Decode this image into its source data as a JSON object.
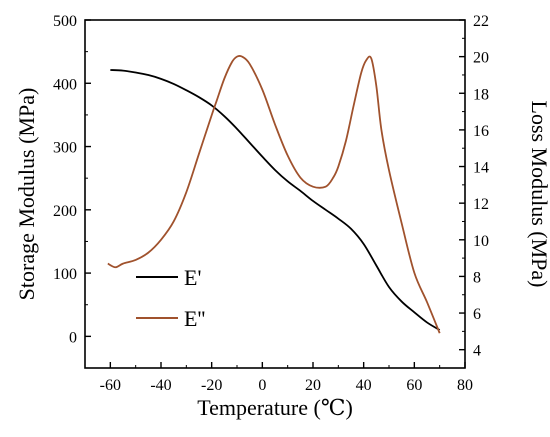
{
  "chart_data": {
    "type": "line",
    "xlabel": "Temperature (℃)",
    "ylabel": "Storage Modulus (MPa)",
    "y2label": "Loss Modulus (MPa)",
    "xlim": [
      -70,
      80
    ],
    "ylim": [
      -50,
      500
    ],
    "y2lim": [
      3,
      22
    ],
    "x_ticks": [
      "-60",
      "-40",
      "-20",
      "0",
      "20",
      "40",
      "60",
      "80"
    ],
    "y_ticks": [
      "0",
      "100",
      "200",
      "300",
      "400",
      "500"
    ],
    "y2_ticks": [
      "4",
      "6",
      "8",
      "10",
      "12",
      "14",
      "16",
      "18",
      "20",
      "22"
    ],
    "grid": false,
    "legend_position": "lower-left",
    "series": [
      {
        "name": "E'",
        "axis": "left",
        "color": "#000000",
        "x": [
          -60,
          -55,
          -50,
          -45,
          -40,
          -35,
          -30,
          -25,
          -20,
          -15,
          -10,
          -5,
          0,
          5,
          10,
          15,
          20,
          25,
          30,
          35,
          40,
          45,
          50,
          55,
          60,
          65,
          70
        ],
        "y": [
          421,
          420,
          417,
          413,
          407,
          399,
          389,
          378,
          365,
          348,
          328,
          306,
          284,
          263,
          245,
          230,
          214,
          200,
          186,
          170,
          146,
          112,
          78,
          55,
          38,
          22,
          10
        ]
      },
      {
        "name": "E''",
        "axis": "right",
        "color": "#a0522d",
        "x": [
          -61,
          -58,
          -55,
          -50,
          -45,
          -40,
          -35,
          -30,
          -25,
          -20,
          -18,
          -15,
          -12,
          -10,
          -8,
          -5,
          0,
          5,
          10,
          15,
          20,
          25,
          28,
          30,
          33,
          36,
          39,
          41,
          43,
          45,
          47,
          50,
          55,
          60,
          65,
          70
        ],
        "y": [
          8.7,
          8.5,
          8.7,
          8.9,
          9.3,
          10.0,
          11.0,
          12.6,
          14.7,
          16.8,
          17.6,
          18.8,
          19.7,
          20.0,
          20.0,
          19.6,
          18.2,
          16.3,
          14.6,
          13.4,
          12.9,
          12.9,
          13.4,
          14.0,
          15.4,
          17.3,
          19.1,
          19.8,
          19.9,
          18.4,
          16.0,
          13.8,
          10.9,
          8.2,
          6.6,
          4.9
        ]
      }
    ],
    "legend": [
      {
        "label": "E'",
        "color": "#000000"
      },
      {
        "label": "E''",
        "color": "#a0522d"
      }
    ]
  }
}
